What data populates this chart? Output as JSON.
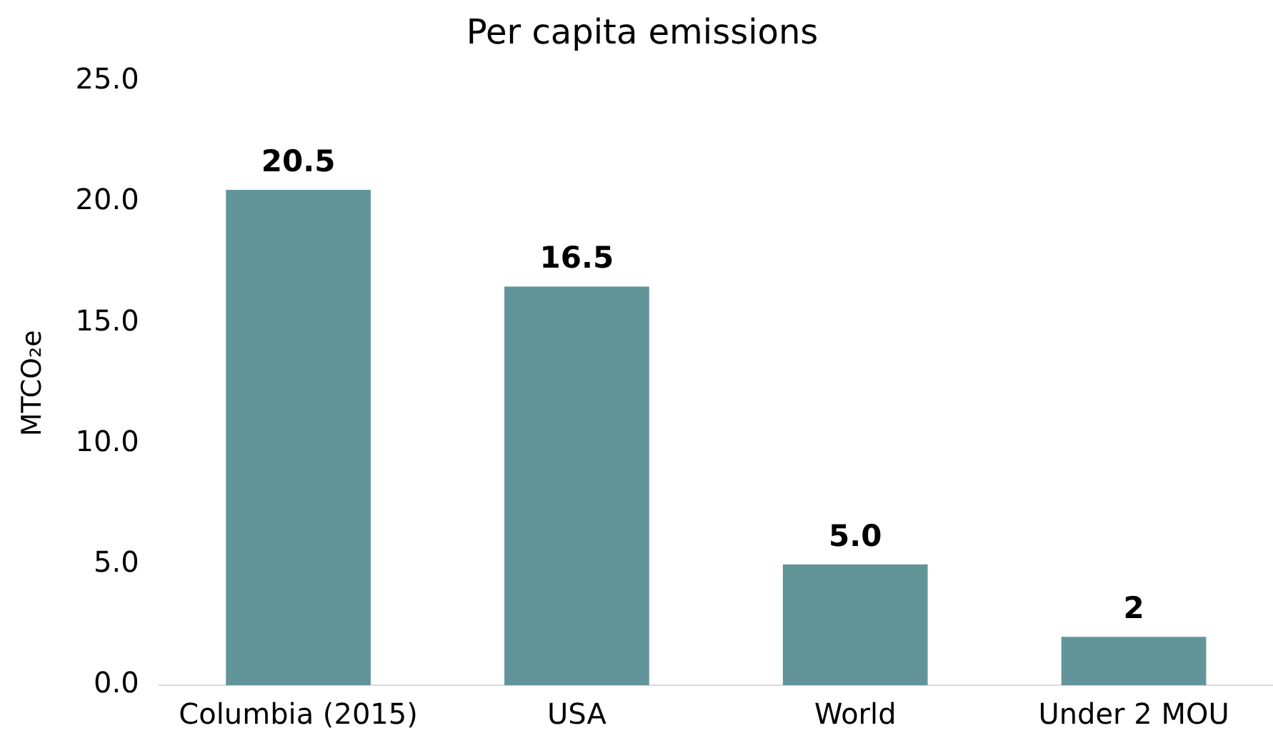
{
  "chart_data": {
    "type": "bar",
    "title": "Per capita emissions",
    "ylabel": "MTCO₂e",
    "categories": [
      "Columbia (2015)",
      "USA",
      "World",
      "Under 2 MOU"
    ],
    "values": [
      20.5,
      16.5,
      5.0,
      2
    ],
    "value_labels": [
      "20.5",
      "16.5",
      "5.0",
      "2"
    ],
    "color": "#62959a",
    "ylim": [
      0,
      25
    ],
    "yticks": [
      {
        "value": 0,
        "label": "0.0"
      },
      {
        "value": 5,
        "label": "5.0"
      },
      {
        "value": 10,
        "label": "10.0"
      },
      {
        "value": 15,
        "label": "15.0"
      },
      {
        "value": 20,
        "label": "20.0"
      },
      {
        "value": 25,
        "label": "25.0"
      }
    ],
    "grid": false,
    "legend": false
  }
}
